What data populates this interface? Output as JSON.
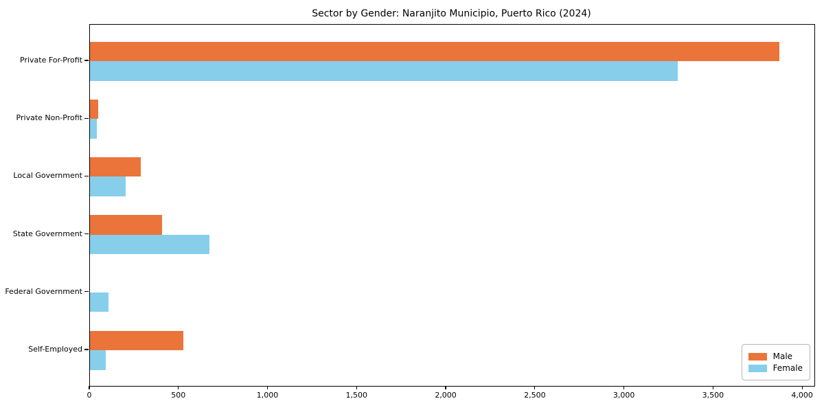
{
  "chart_data": {
    "type": "bar",
    "orientation": "horizontal",
    "title": "Sector by Gender: Naranjito Municipio, Puerto Rico (2024)",
    "categories": [
      "Private For-Profit",
      "Private Non-Profit",
      "Local Government",
      "State Government",
      "Federal Government",
      "Self-Employed"
    ],
    "series": [
      {
        "name": "Male",
        "color": "#eb743a",
        "values": [
          3870,
          45,
          285,
          405,
          0,
          525
        ]
      },
      {
        "name": "Female",
        "color": "#87ceeb",
        "values": [
          3300,
          40,
          200,
          670,
          105,
          90
        ]
      }
    ],
    "xlabel": "",
    "ylabel": "",
    "xlim": [
      0,
      4065
    ],
    "x_ticks": [
      0,
      500,
      1000,
      1500,
      2000,
      2500,
      3000,
      3500,
      4000
    ],
    "x_tick_labels": [
      "0",
      "500",
      "1,000",
      "1,500",
      "2,000",
      "2,500",
      "3,000",
      "3,500",
      "4,000"
    ],
    "legend_position": "lower right",
    "grid": false,
    "colors": {
      "male": "#eb743a",
      "female": "#87ceeb",
      "spine": "#000000",
      "text": "#000000"
    }
  }
}
